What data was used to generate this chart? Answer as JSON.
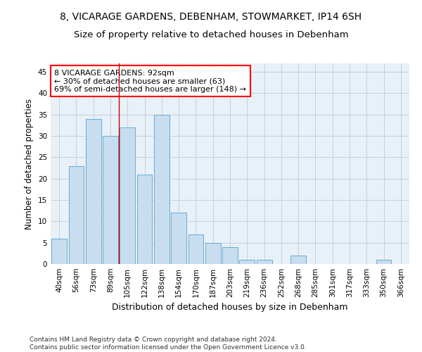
{
  "title": "8, VICARAGE GARDENS, DEBENHAM, STOWMARKET, IP14 6SH",
  "subtitle": "Size of property relative to detached houses in Debenham",
  "xlabel": "Distribution of detached houses by size in Debenham",
  "ylabel": "Number of detached properties",
  "bar_color": "#c8ddef",
  "bar_edge_color": "#6aabd2",
  "categories": [
    "40sqm",
    "56sqm",
    "73sqm",
    "89sqm",
    "105sqm",
    "122sqm",
    "138sqm",
    "154sqm",
    "170sqm",
    "187sqm",
    "203sqm",
    "219sqm",
    "236sqm",
    "252sqm",
    "268sqm",
    "285sqm",
    "301sqm",
    "317sqm",
    "333sqm",
    "350sqm",
    "366sqm"
  ],
  "values": [
    6,
    23,
    34,
    30,
    32,
    21,
    35,
    12,
    7,
    5,
    4,
    1,
    1,
    0,
    2,
    0,
    0,
    0,
    0,
    1,
    0
  ],
  "vline_x": 3.5,
  "vline_color": "#cc0000",
  "annotation_line1": "8 VICARAGE GARDENS: 92sqm",
  "annotation_line2": "← 30% of detached houses are smaller (63)",
  "annotation_line3": "69% of semi-detached houses are larger (148) →",
  "ylim": [
    0,
    47
  ],
  "yticks": [
    0,
    5,
    10,
    15,
    20,
    25,
    30,
    35,
    40,
    45
  ],
  "footer": "Contains HM Land Registry data © Crown copyright and database right 2024.\nContains public sector information licensed under the Open Government Licence v3.0.",
  "bg_color": "#ffffff",
  "plot_bg_color": "#e8f0f8",
  "grid_color": "#c0ccd8",
  "title_fontsize": 10,
  "subtitle_fontsize": 9.5,
  "xlabel_fontsize": 9,
  "ylabel_fontsize": 8.5,
  "tick_fontsize": 7.5,
  "annotation_fontsize": 8,
  "footer_fontsize": 6.5
}
